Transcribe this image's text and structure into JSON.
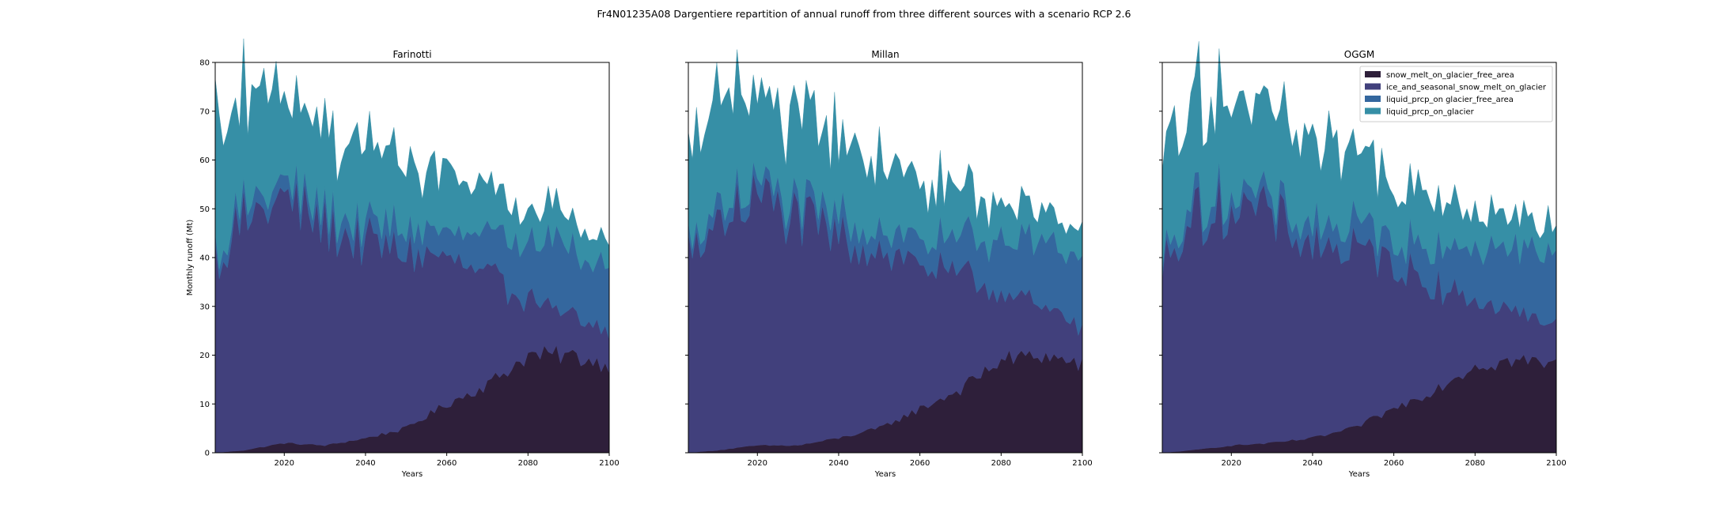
{
  "figure": {
    "suptitle": "Fr4N01235A08 Dargentiere repartition of annual runoff from three different sources with a scenario RCP 2.6"
  },
  "legend": {
    "entries": [
      {
        "label": "snow_melt_on_glacier_free_area",
        "color": "#2e1f3a"
      },
      {
        "label": "ice_and_seasonal_snow_melt_on_glacier",
        "color": "#41407c"
      },
      {
        "label": "liquid_prcp_on glacier_free_area",
        "color": "#34679e"
      },
      {
        "label": "liquid_prcp_on_glacier",
        "color": "#368fa6"
      }
    ]
  },
  "chart_data": {
    "type": "area",
    "stacked": true,
    "years_range": [
      2003,
      2100
    ],
    "xlim": [
      2003,
      2100
    ],
    "ylim": [
      0,
      80
    ],
    "xticks": [
      2020,
      2040,
      2060,
      2080,
      2100
    ],
    "yticks": [
      0,
      10,
      20,
      30,
      40,
      50,
      60,
      70,
      80
    ],
    "xlabel": "Years",
    "ylabel": "Monthly runoff (Mt)",
    "shared_y": true,
    "grid": false,
    "legend_position": "top-right of third panel",
    "colors": [
      "#2e1f3a",
      "#41407c",
      "#34679e",
      "#368fa6"
    ],
    "panels": [
      {
        "title": "Farinotti",
        "series": [
          {
            "name": "snow_melt_on_glacier_free_area",
            "key_points": [
              [
                2003,
                0
              ],
              [
                2010,
                0.5
              ],
              [
                2020,
                2
              ],
              [
                2030,
                1.5
              ],
              [
                2040,
                3
              ],
              [
                2050,
                5
              ],
              [
                2060,
                10
              ],
              [
                2070,
                14
              ],
              [
                2080,
                20
              ],
              [
                2090,
                20
              ],
              [
                2100,
                18
              ]
            ]
          },
          {
            "name": "ice_and_seasonal_snow_melt_on_glacier",
            "key_points": [
              [
                2003,
                40
              ],
              [
                2010,
                47
              ],
              [
                2020,
                50
              ],
              [
                2030,
                45
              ],
              [
                2040,
                40
              ],
              [
                2050,
                36
              ],
              [
                2060,
                30
              ],
              [
                2070,
                22
              ],
              [
                2080,
                12
              ],
              [
                2090,
                8
              ],
              [
                2100,
                7
              ]
            ]
          },
          {
            "name": "liquid_prcp_on glacier_free_area",
            "key_points": [
              [
                2003,
                2
              ],
              [
                2010,
                3
              ],
              [
                2020,
                3
              ],
              [
                2030,
                3
              ],
              [
                2040,
                4
              ],
              [
                2050,
                5
              ],
              [
                2060,
                5
              ],
              [
                2070,
                8
              ],
              [
                2080,
                12
              ],
              [
                2090,
                14
              ],
              [
                2100,
                15
              ]
            ]
          },
          {
            "name": "liquid_prcp_on_glacier",
            "key_points": [
              [
                2003,
                25
              ],
              [
                2010,
                22
              ],
              [
                2020,
                19
              ],
              [
                2030,
                17
              ],
              [
                2040,
                18
              ],
              [
                2050,
                15
              ],
              [
                2060,
                11
              ],
              [
                2070,
                10
              ],
              [
                2080,
                6
              ],
              [
                2090,
                6
              ],
              [
                2100,
                5
              ]
            ]
          }
        ]
      },
      {
        "title": "Millan",
        "series": [
          {
            "name": "snow_melt_on_glacier_free_area",
            "key_points": [
              [
                2003,
                0
              ],
              [
                2010,
                0.5
              ],
              [
                2020,
                1.5
              ],
              [
                2030,
                1.5
              ],
              [
                2040,
                3
              ],
              [
                2050,
                5
              ],
              [
                2060,
                9
              ],
              [
                2070,
                13
              ],
              [
                2080,
                19
              ],
              [
                2090,
                20
              ],
              [
                2100,
                18
              ]
            ]
          },
          {
            "name": "ice_and_seasonal_snow_melt_on_glacier",
            "key_points": [
              [
                2003,
                40
              ],
              [
                2010,
                47
              ],
              [
                2020,
                51
              ],
              [
                2030,
                46
              ],
              [
                2040,
                41
              ],
              [
                2050,
                37
              ],
              [
                2060,
                30
              ],
              [
                2070,
                23
              ],
              [
                2080,
                14
              ],
              [
                2090,
                10
              ],
              [
                2100,
                8
              ]
            ]
          },
          {
            "name": "liquid_prcp_on glacier_free_area",
            "key_points": [
              [
                2003,
                2
              ],
              [
                2010,
                3
              ],
              [
                2020,
                3
              ],
              [
                2030,
                3
              ],
              [
                2040,
                4
              ],
              [
                2050,
                4
              ],
              [
                2060,
                5
              ],
              [
                2070,
                7
              ],
              [
                2080,
                11
              ],
              [
                2090,
                13
              ],
              [
                2100,
                14
              ]
            ]
          },
          {
            "name": "liquid_prcp_on_glacier",
            "key_points": [
              [
                2003,
                25
              ],
              [
                2010,
                22
              ],
              [
                2020,
                18
              ],
              [
                2030,
                17
              ],
              [
                2040,
                17
              ],
              [
                2050,
                15
              ],
              [
                2060,
                12
              ],
              [
                2070,
                10
              ],
              [
                2080,
                7
              ],
              [
                2090,
                6
              ],
              [
                2100,
                6
              ]
            ]
          }
        ]
      },
      {
        "title": "OGGM",
        "series": [
          {
            "name": "snow_melt_on_glacier_free_area",
            "key_points": [
              [
                2003,
                0
              ],
              [
                2010,
                0.5
              ],
              [
                2020,
                1.5
              ],
              [
                2030,
                2
              ],
              [
                2040,
                3
              ],
              [
                2050,
                5
              ],
              [
                2060,
                9
              ],
              [
                2070,
                13
              ],
              [
                2080,
                18
              ],
              [
                2090,
                19
              ],
              [
                2100,
                18
              ]
            ]
          },
          {
            "name": "ice_and_seasonal_snow_melt_on_glacier",
            "key_points": [
              [
                2003,
                40
              ],
              [
                2010,
                47
              ],
              [
                2020,
                50
              ],
              [
                2030,
                46
              ],
              [
                2040,
                40
              ],
              [
                2050,
                36
              ],
              [
                2060,
                30
              ],
              [
                2070,
                22
              ],
              [
                2080,
                14
              ],
              [
                2090,
                10
              ],
              [
                2100,
                8
              ]
            ]
          },
          {
            "name": "liquid_prcp_on glacier_free_area",
            "key_points": [
              [
                2003,
                2
              ],
              [
                2010,
                3
              ],
              [
                2020,
                3
              ],
              [
                2030,
                3
              ],
              [
                2040,
                4
              ],
              [
                2050,
                5
              ],
              [
                2060,
                5
              ],
              [
                2070,
                8
              ],
              [
                2080,
                11
              ],
              [
                2090,
                13
              ],
              [
                2100,
                14
              ]
            ]
          },
          {
            "name": "liquid_prcp_on_glacier",
            "key_points": [
              [
                2003,
                25
              ],
              [
                2010,
                22
              ],
              [
                2020,
                19
              ],
              [
                2030,
                17
              ],
              [
                2040,
                18
              ],
              [
                2050,
                15
              ],
              [
                2060,
                12
              ],
              [
                2070,
                10
              ],
              [
                2080,
                7
              ],
              [
                2090,
                6
              ],
              [
                2100,
                6
              ]
            ]
          }
        ]
      }
    ]
  }
}
